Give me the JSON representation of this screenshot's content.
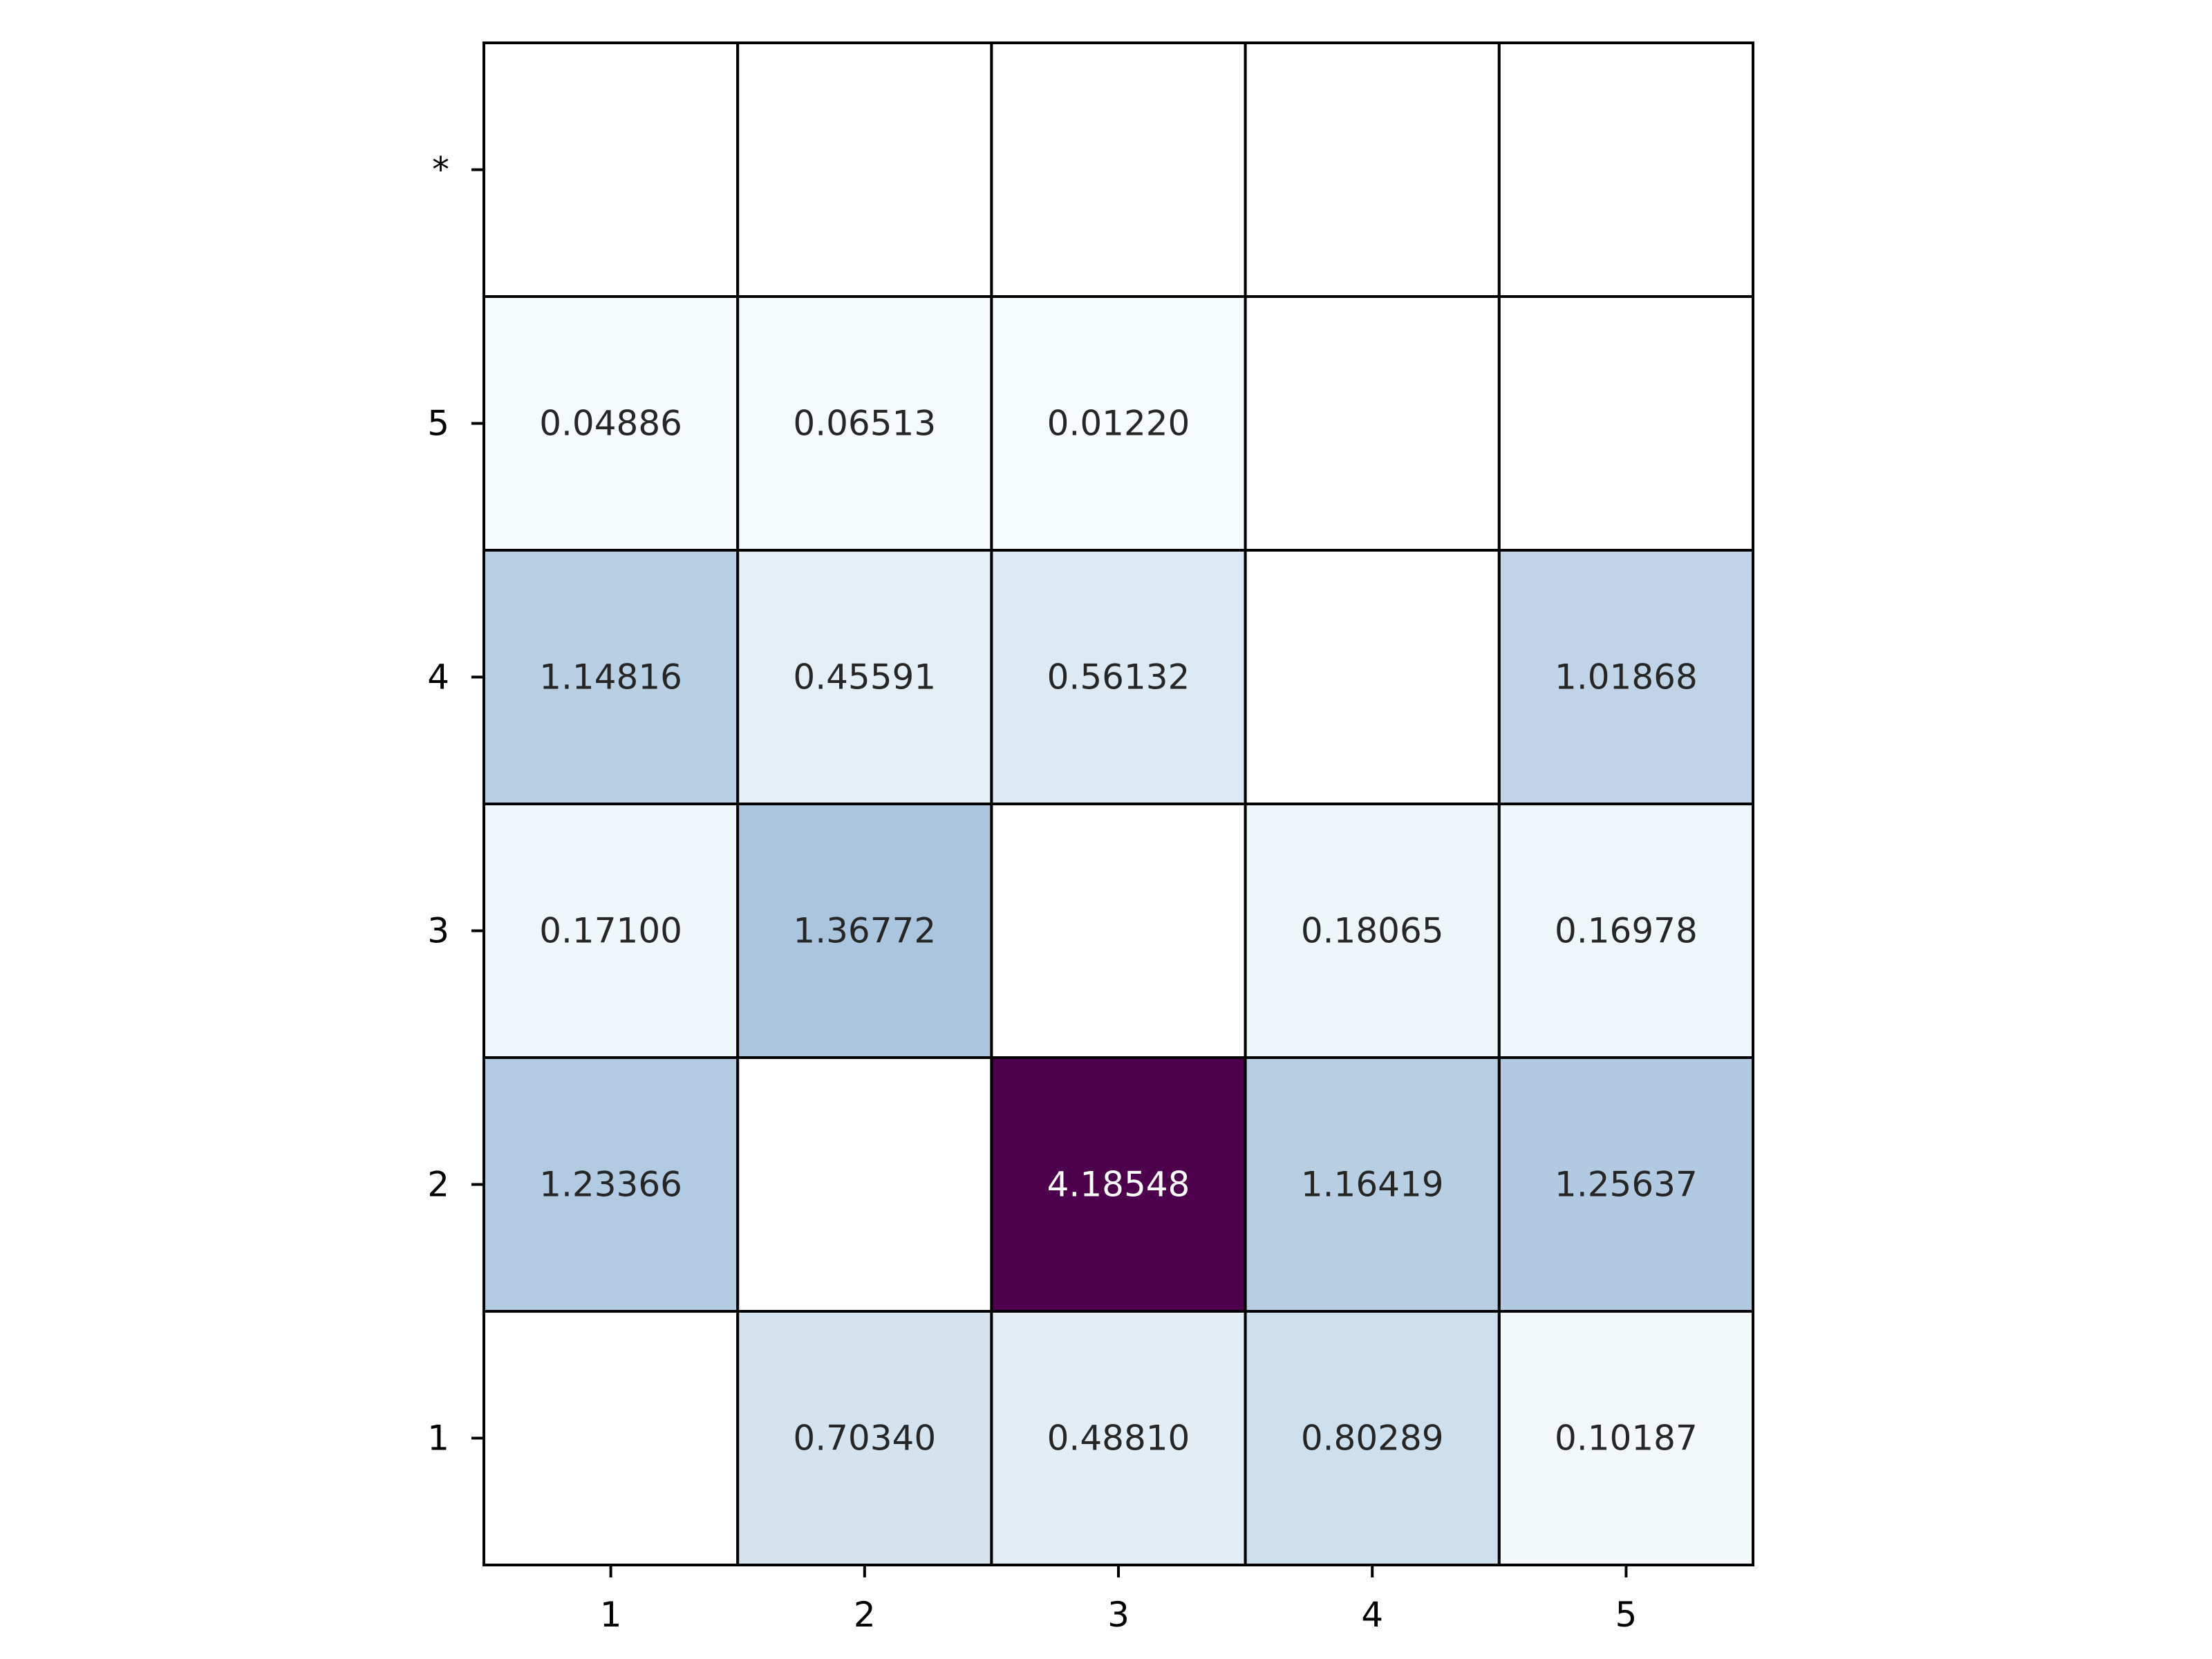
{
  "chart_data": {
    "type": "heatmap",
    "title": "",
    "xlabel": "",
    "ylabel": "",
    "x_categories": [
      "1",
      "2",
      "3",
      "4",
      "5"
    ],
    "y_categories": [
      "*",
      "5",
      "4",
      "3",
      "2",
      "1"
    ],
    "cells": [
      {
        "row": "*",
        "col": "1",
        "value": null,
        "label": ""
      },
      {
        "row": "*",
        "col": "2",
        "value": null,
        "label": ""
      },
      {
        "row": "*",
        "col": "3",
        "value": null,
        "label": ""
      },
      {
        "row": "*",
        "col": "4",
        "value": null,
        "label": ""
      },
      {
        "row": "*",
        "col": "5",
        "value": null,
        "label": ""
      },
      {
        "row": "5",
        "col": "1",
        "value": 0.04886,
        "label": "0.04886"
      },
      {
        "row": "5",
        "col": "2",
        "value": 0.06513,
        "label": "0.06513"
      },
      {
        "row": "5",
        "col": "3",
        "value": 0.0122,
        "label": "0.01220"
      },
      {
        "row": "5",
        "col": "4",
        "value": null,
        "label": ""
      },
      {
        "row": "5",
        "col": "5",
        "value": null,
        "label": ""
      },
      {
        "row": "4",
        "col": "1",
        "value": 1.14816,
        "label": "1.14816"
      },
      {
        "row": "4",
        "col": "2",
        "value": 0.45591,
        "label": "0.45591"
      },
      {
        "row": "4",
        "col": "3",
        "value": 0.56132,
        "label": "0.56132"
      },
      {
        "row": "4",
        "col": "4",
        "value": null,
        "label": ""
      },
      {
        "row": "4",
        "col": "5",
        "value": 1.01868,
        "label": "1.01868"
      },
      {
        "row": "3",
        "col": "1",
        "value": 0.171,
        "label": "0.17100"
      },
      {
        "row": "3",
        "col": "2",
        "value": 1.36772,
        "label": "1.36772"
      },
      {
        "row": "3",
        "col": "3",
        "value": null,
        "label": ""
      },
      {
        "row": "3",
        "col": "4",
        "value": 0.18065,
        "label": "0.18065"
      },
      {
        "row": "3",
        "col": "5",
        "value": 0.16978,
        "label": "0.16978"
      },
      {
        "row": "2",
        "col": "1",
        "value": 1.23366,
        "label": "1.23366"
      },
      {
        "row": "2",
        "col": "2",
        "value": null,
        "label": ""
      },
      {
        "row": "2",
        "col": "3",
        "value": 4.18548,
        "label": "4.18548"
      },
      {
        "row": "2",
        "col": "4",
        "value": 1.16419,
        "label": "1.16419"
      },
      {
        "row": "2",
        "col": "5",
        "value": 1.25637,
        "label": "1.25637"
      },
      {
        "row": "1",
        "col": "1",
        "value": null,
        "label": ""
      },
      {
        "row": "1",
        "col": "2",
        "value": 0.7034,
        "label": "0.70340"
      },
      {
        "row": "1",
        "col": "3",
        "value": 0.4881,
        "label": "0.48810"
      },
      {
        "row": "1",
        "col": "4",
        "value": 0.80289,
        "label": "0.80289"
      },
      {
        "row": "1",
        "col": "5",
        "value": 0.10187,
        "label": "0.10187"
      }
    ],
    "colormap": "BuPu",
    "vmin": 0,
    "vmax": 4.18548,
    "empty_cell_color": "#ffffff",
    "grid": true,
    "cell_border_color": "#000000",
    "text_color_dark": "#262626",
    "text_color_light": "#ffffff"
  }
}
